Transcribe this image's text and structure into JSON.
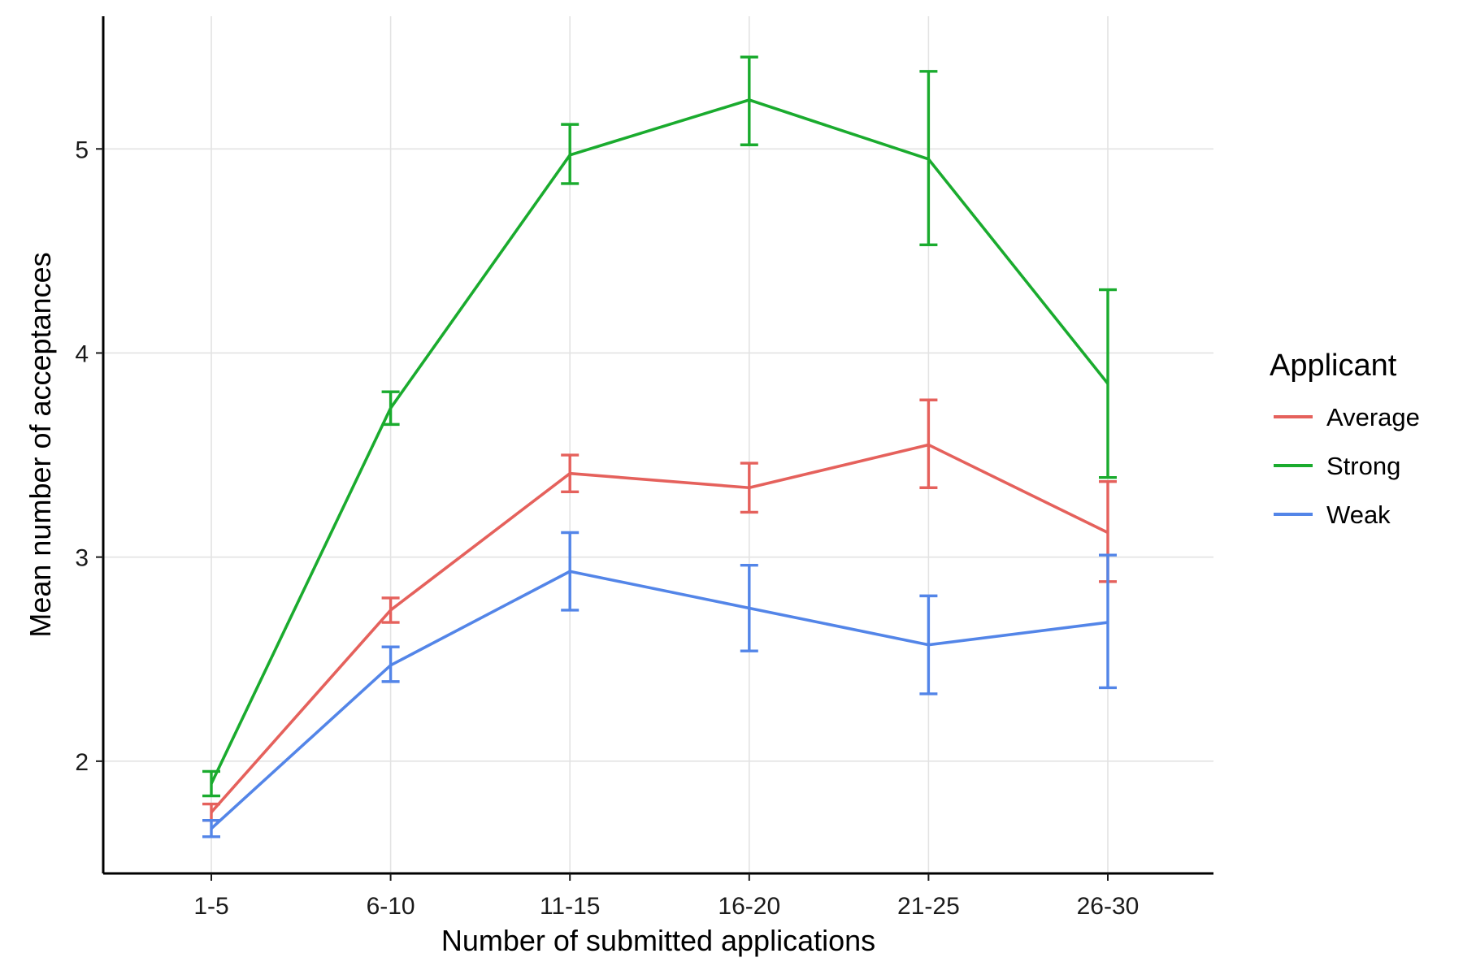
{
  "chart_data": {
    "type": "line",
    "title": "",
    "xlabel": "Number of submitted applications",
    "ylabel": "Mean number of acceptances",
    "categories": [
      "1-5",
      "6-10",
      "11-15",
      "16-20",
      "21-25",
      "26-30"
    ],
    "ylim": [
      1.45,
      5.65
    ],
    "yticks": [
      2,
      3,
      4,
      5
    ],
    "ytick_labels": [
      "2",
      "3",
      "4",
      "5"
    ],
    "grid": true,
    "legend": {
      "title": "Applicant",
      "position": "right"
    },
    "series": [
      {
        "name": "Average",
        "color": "#e5615c",
        "values": [
          1.75,
          2.74,
          3.41,
          3.34,
          3.55,
          3.12
        ],
        "error_low": [
          1.71,
          2.68,
          3.32,
          3.22,
          3.34,
          2.88
        ],
        "error_high": [
          1.79,
          2.8,
          3.5,
          3.46,
          3.77,
          3.37
        ]
      },
      {
        "name": "Strong",
        "color": "#1aab2e",
        "values": [
          1.89,
          3.73,
          4.97,
          5.24,
          4.95,
          3.85
        ],
        "error_low": [
          1.83,
          3.65,
          4.83,
          5.02,
          4.53,
          3.39
        ],
        "error_high": [
          1.95,
          3.81,
          5.12,
          5.45,
          5.38,
          4.31
        ]
      },
      {
        "name": "Weak",
        "color": "#5385e8",
        "values": [
          1.67,
          2.47,
          2.93,
          2.75,
          2.57,
          2.68
        ],
        "error_low": [
          1.63,
          2.39,
          2.74,
          2.54,
          2.33,
          2.36
        ],
        "error_high": [
          1.71,
          2.56,
          3.12,
          2.96,
          2.81,
          3.01
        ]
      }
    ]
  }
}
